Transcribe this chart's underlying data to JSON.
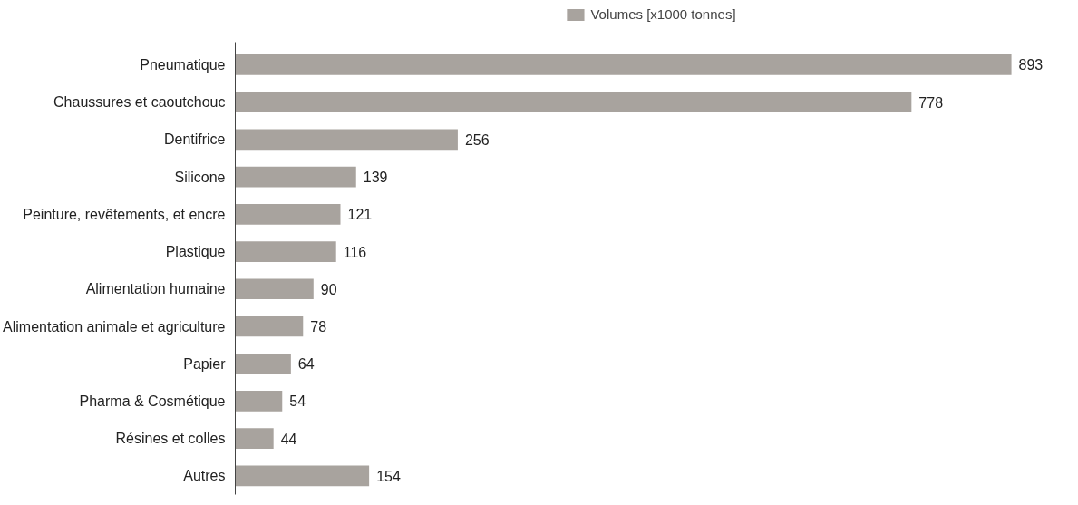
{
  "chart_data": {
    "type": "bar",
    "orientation": "horizontal",
    "categories": [
      "Pneumatique",
      "Chaussures et caoutchouc",
      "Dentifrice",
      "Silicone",
      "Peinture, revêtements, et encre",
      "Plastique",
      "Alimentation humaine",
      "Alimentation animale et agriculture",
      "Papier",
      "Pharma & Cosmétique",
      "Résines et colles",
      "Autres"
    ],
    "series": [
      {
        "name": "Volumes [x1000 tonnes]",
        "color": "#a8a39e",
        "values": [
          893,
          778,
          256,
          139,
          121,
          116,
          90,
          78,
          64,
          54,
          44,
          154
        ]
      }
    ],
    "data_labels": true,
    "legend": "top",
    "grid": false
  }
}
